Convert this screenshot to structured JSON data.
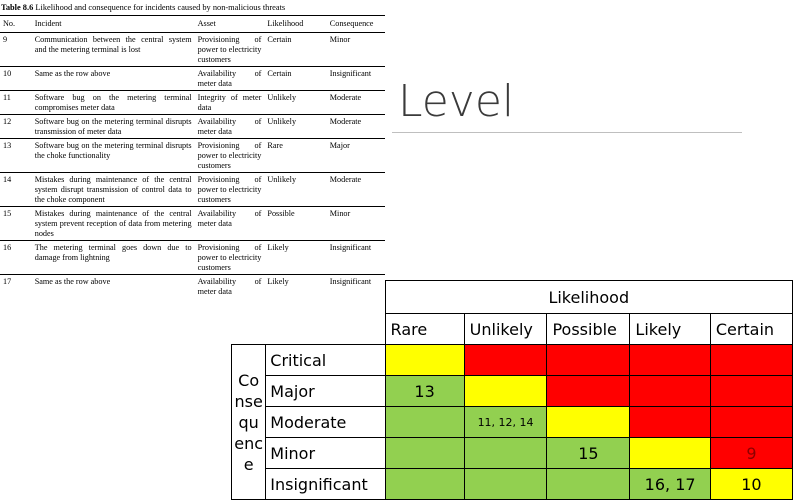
{
  "doc_table": {
    "caption_label": "Table 8.6",
    "caption_text": "Likelihood and consequence for incidents caused by non-malicious threats",
    "headers": [
      "No.",
      "Incident",
      "Asset",
      "Likelihood",
      "Consequence"
    ],
    "rows": [
      {
        "no": "9",
        "incident": "Communication between the central system and the metering terminal is lost",
        "asset": "Provisioning of power to electricity customers",
        "likelihood": "Certain",
        "consequence": "Minor"
      },
      {
        "no": "10",
        "incident": "Same as the row above",
        "asset": "Availability of meter data",
        "likelihood": "Certain",
        "consequence": "Insignificant"
      },
      {
        "no": "11",
        "incident": "Software bug on the metering terminal compromises meter data",
        "asset": "Integrity of meter data",
        "likelihood": "Unlikely",
        "consequence": "Moderate"
      },
      {
        "no": "12",
        "incident": "Software bug on the metering terminal disrupts transmission of meter data",
        "asset": "Availability of meter data",
        "likelihood": "Unlikely",
        "consequence": "Moderate"
      },
      {
        "no": "13",
        "incident": "Software bug on the metering terminal disrupts the choke functionality",
        "asset": "Provisioning of power to electricity customers",
        "likelihood": "Rare",
        "consequence": "Major"
      },
      {
        "no": "14",
        "incident": "Mistakes during maintenance of the central system disrupt transmission of control data to the choke component",
        "asset": "Provisioning of power to electricity customers",
        "likelihood": "Unlikely",
        "consequence": "Moderate"
      },
      {
        "no": "15",
        "incident": "Mistakes during maintenance of the central system prevent reception of data from metering nodes",
        "asset": "Availability of meter data",
        "likelihood": "Possible",
        "consequence": "Minor"
      },
      {
        "no": "16",
        "incident": "The metering terminal goes down due to damage from lightning",
        "asset": "Provisioning of power to electricity customers",
        "likelihood": "Likely",
        "consequence": "Insignificant"
      },
      {
        "no": "17",
        "incident": "Same as the row above",
        "asset": "Availability of meter data",
        "likelihood": "Likely",
        "consequence": "Insignificant"
      }
    ]
  },
  "heading": "Level",
  "matrix": {
    "likelihood_title": "Likelihood",
    "columns": [
      "Rare",
      "Unlikely",
      "Possible",
      "Likely",
      "Certain"
    ],
    "consequence_lines": [
      "Co",
      "nse",
      "qu",
      "enc",
      "e"
    ],
    "rows": [
      {
        "name": "Critical",
        "cells": [
          "",
          "",
          "",
          "",
          ""
        ],
        "colors": [
          "#ffff00",
          "#ff0000",
          "#ff0000",
          "#ff0000",
          "#ff0000"
        ]
      },
      {
        "name": "Major",
        "cells": [
          "13",
          "",
          "",
          "",
          ""
        ],
        "colors": [
          "#92d050",
          "#ffff00",
          "#ff0000",
          "#ff0000",
          "#ff0000"
        ]
      },
      {
        "name": "Moderate",
        "cells": [
          "",
          "11, 12, 14",
          "",
          "",
          ""
        ],
        "colors": [
          "#92d050",
          "#92d050",
          "#ffff00",
          "#ff0000",
          "#ff0000"
        ]
      },
      {
        "name": "Minor",
        "cells": [
          "",
          "",
          "15",
          "",
          "9"
        ],
        "colors": [
          "#92d050",
          "#92d050",
          "#92d050",
          "#ffff00",
          "#ff0000"
        ]
      },
      {
        "name": "Insignificant",
        "cells": [
          "",
          "",
          "",
          "16, 17",
          "10"
        ],
        "colors": [
          "#92d050",
          "#92d050",
          "#92d050",
          "#92d050",
          "#ffff00"
        ]
      }
    ]
  }
}
